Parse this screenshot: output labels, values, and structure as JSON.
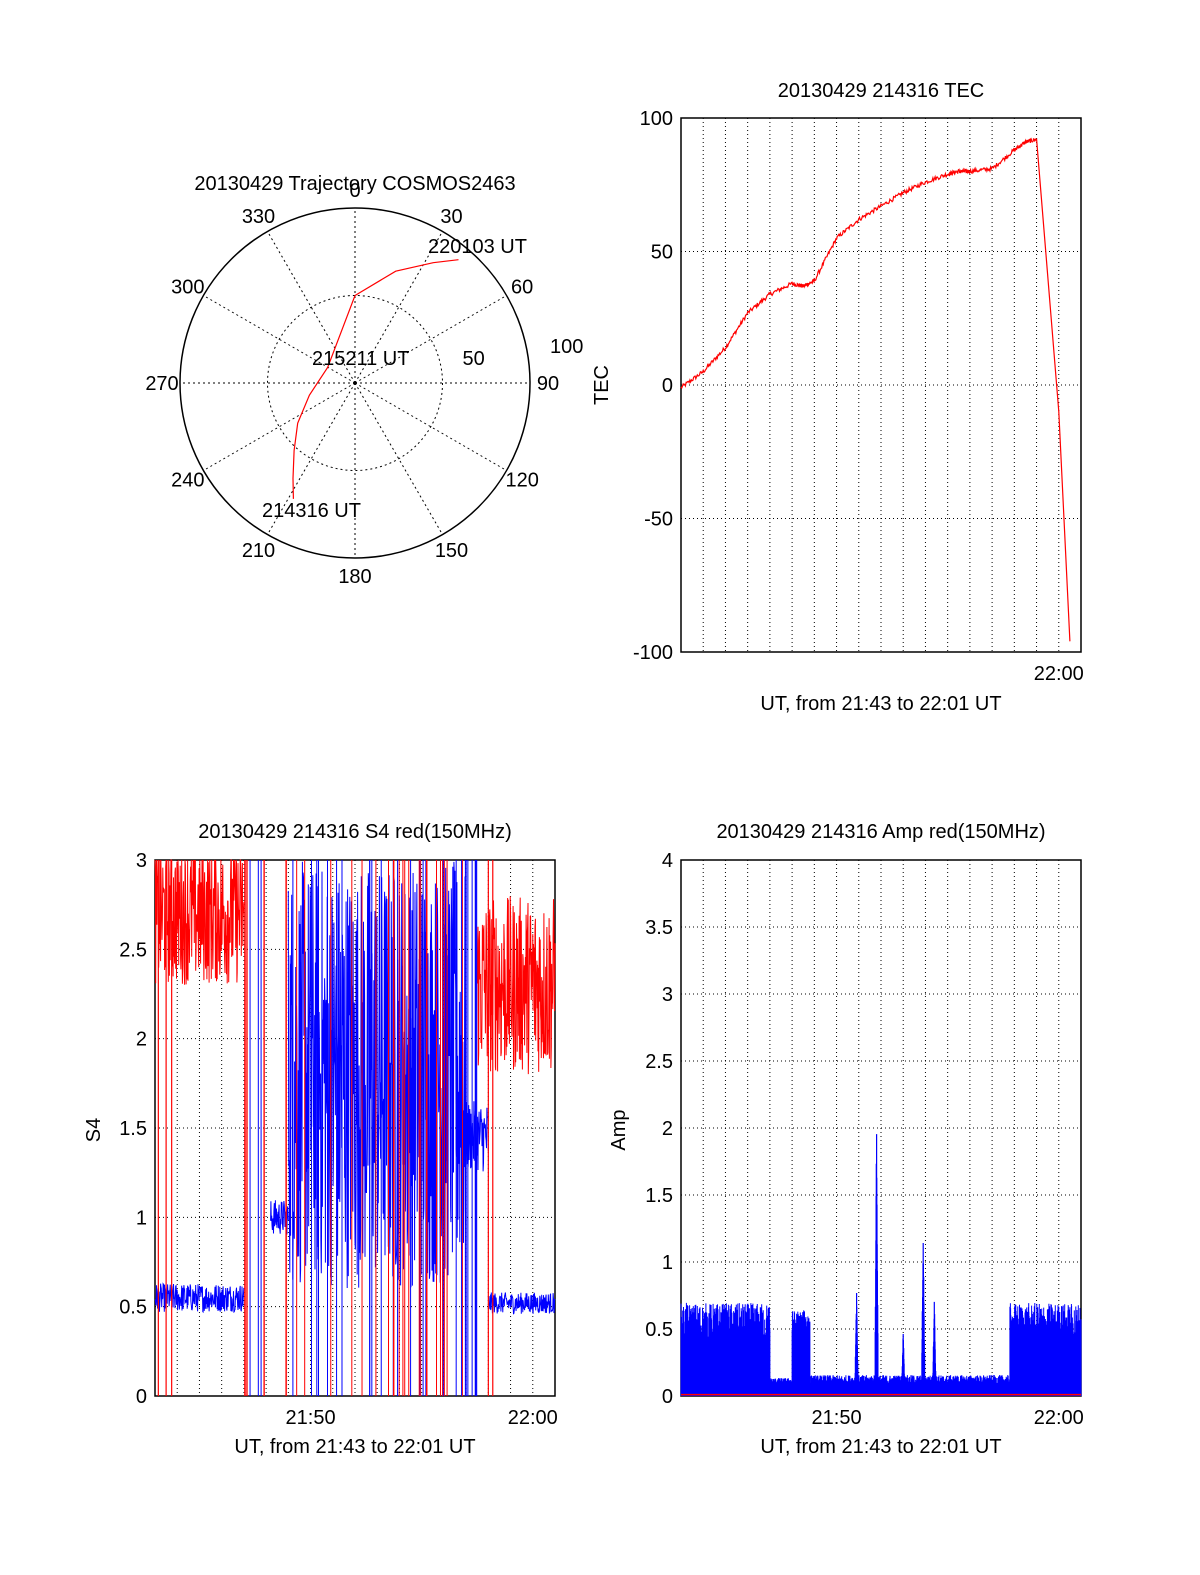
{
  "colors": {
    "red": "#ff0000",
    "blue": "#0000ff",
    "axis": "#000000",
    "grid": "#000000"
  },
  "chart_data": [
    {
      "type": "polar",
      "title": "20130429 Trajectory COSMOS2463",
      "angle_ticks": [
        "0",
        "30",
        "60",
        "90",
        "120",
        "150",
        "180",
        "210",
        "240",
        "270",
        "300",
        "330"
      ],
      "radial_ticks": [
        "50",
        "100"
      ],
      "trajectory": {
        "azimuth_deg": [
          208,
          213,
          222,
          235,
          255,
          300,
          0,
          20,
          33,
          40
        ],
        "radius": [
          75,
          65,
          52,
          40,
          27,
          18,
          50,
          68,
          82,
          92
        ]
      },
      "labels": {
        "start": "214316 UT",
        "mid": "215211 UT",
        "end": "220103 UT"
      }
    },
    {
      "type": "line",
      "title": "20130429 214316 TEC",
      "xlabel": "UT, from 21:43 to 22:01 UT",
      "ylabel": "TEC",
      "ylim": [
        -100,
        100
      ],
      "yticks": [
        "100",
        "50",
        "0",
        "-50",
        "-100"
      ],
      "xticks": [
        "22:00"
      ],
      "x_minutes": [
        0,
        1,
        2,
        3,
        4,
        5,
        5.5,
        6,
        7,
        8,
        9,
        10,
        11,
        12,
        12.5,
        13,
        14,
        15,
        15.5,
        16,
        17,
        17.5
      ],
      "values": [
        -1,
        5,
        14,
        27,
        34,
        38,
        37,
        39,
        55,
        62,
        67,
        72,
        76,
        79,
        80,
        80,
        81,
        88,
        91,
        92,
        -10,
        -96
      ],
      "series_color": "red"
    },
    {
      "type": "line",
      "title": "20130429 214316 S4 red(150MHz)",
      "xlabel": "UT, from 21:43 to 22:01 UT",
      "ylabel": "S4",
      "ylim": [
        0,
        3
      ],
      "yticks": [
        "0",
        "0.5",
        "1",
        "1.5",
        "2",
        "2.5",
        "3"
      ],
      "xticks": [
        "21:50",
        "22:00"
      ],
      "series": [
        {
          "color": "blue",
          "segments": [
            {
              "x": [
                0,
                4
              ],
              "level": 0.55,
              "noise": 0.08
            },
            {
              "x": [
                5.2,
                6
              ],
              "level": 1.0,
              "noise": 0.1
            },
            {
              "x": [
                6,
                14
              ],
              "level": 1.8,
              "noise": 1.2
            },
            {
              "x": [
                14,
                15
              ],
              "level": 1.45,
              "noise": 0.2
            },
            {
              "x": [
                15,
                18
              ],
              "level": 0.52,
              "noise": 0.06
            }
          ]
        },
        {
          "color": "red",
          "segments": [
            {
              "x": [
                0,
                4
              ],
              "level": 2.7,
              "noise": 0.4
            },
            {
              "x": [
                14.5,
                18
              ],
              "level": 2.3,
              "noise": 0.5
            }
          ]
        }
      ]
    },
    {
      "type": "line",
      "title": "20130429 214316 Amp red(150MHz)",
      "xlabel": "UT, from 21:43 to 22:01 UT",
      "ylabel": "Amp",
      "ylim": [
        0,
        4
      ],
      "yticks": [
        "0",
        "0.5",
        "1",
        "1.5",
        "2",
        "2.5",
        "3",
        "3.5",
        "4"
      ],
      "xticks": [
        "21:50",
        "22:00"
      ],
      "series": [
        {
          "color": "blue",
          "segments": [
            {
              "x": [
                0,
                4
              ],
              "level": 0.45,
              "noise": 0.35
            },
            {
              "x": [
                4,
                5
              ],
              "level": 0.1,
              "noise": 0.05
            },
            {
              "x": [
                5,
                5.8
              ],
              "level": 0.5,
              "noise": 0.2
            },
            {
              "x": [
                5.8,
                14.8
              ],
              "level": 0.1,
              "noise": 0.08
            },
            {
              "x": [
                14.8,
                18
              ],
              "level": 0.45,
              "noise": 0.35
            }
          ],
          "spikes": [
            [
              7.9,
              0.8
            ],
            [
              8.8,
              2.05
            ],
            [
              10.0,
              0.5
            ],
            [
              10.9,
              1.3
            ],
            [
              11.4,
              0.75
            ]
          ]
        },
        {
          "color": "red",
          "level": 0.01
        }
      ]
    }
  ]
}
